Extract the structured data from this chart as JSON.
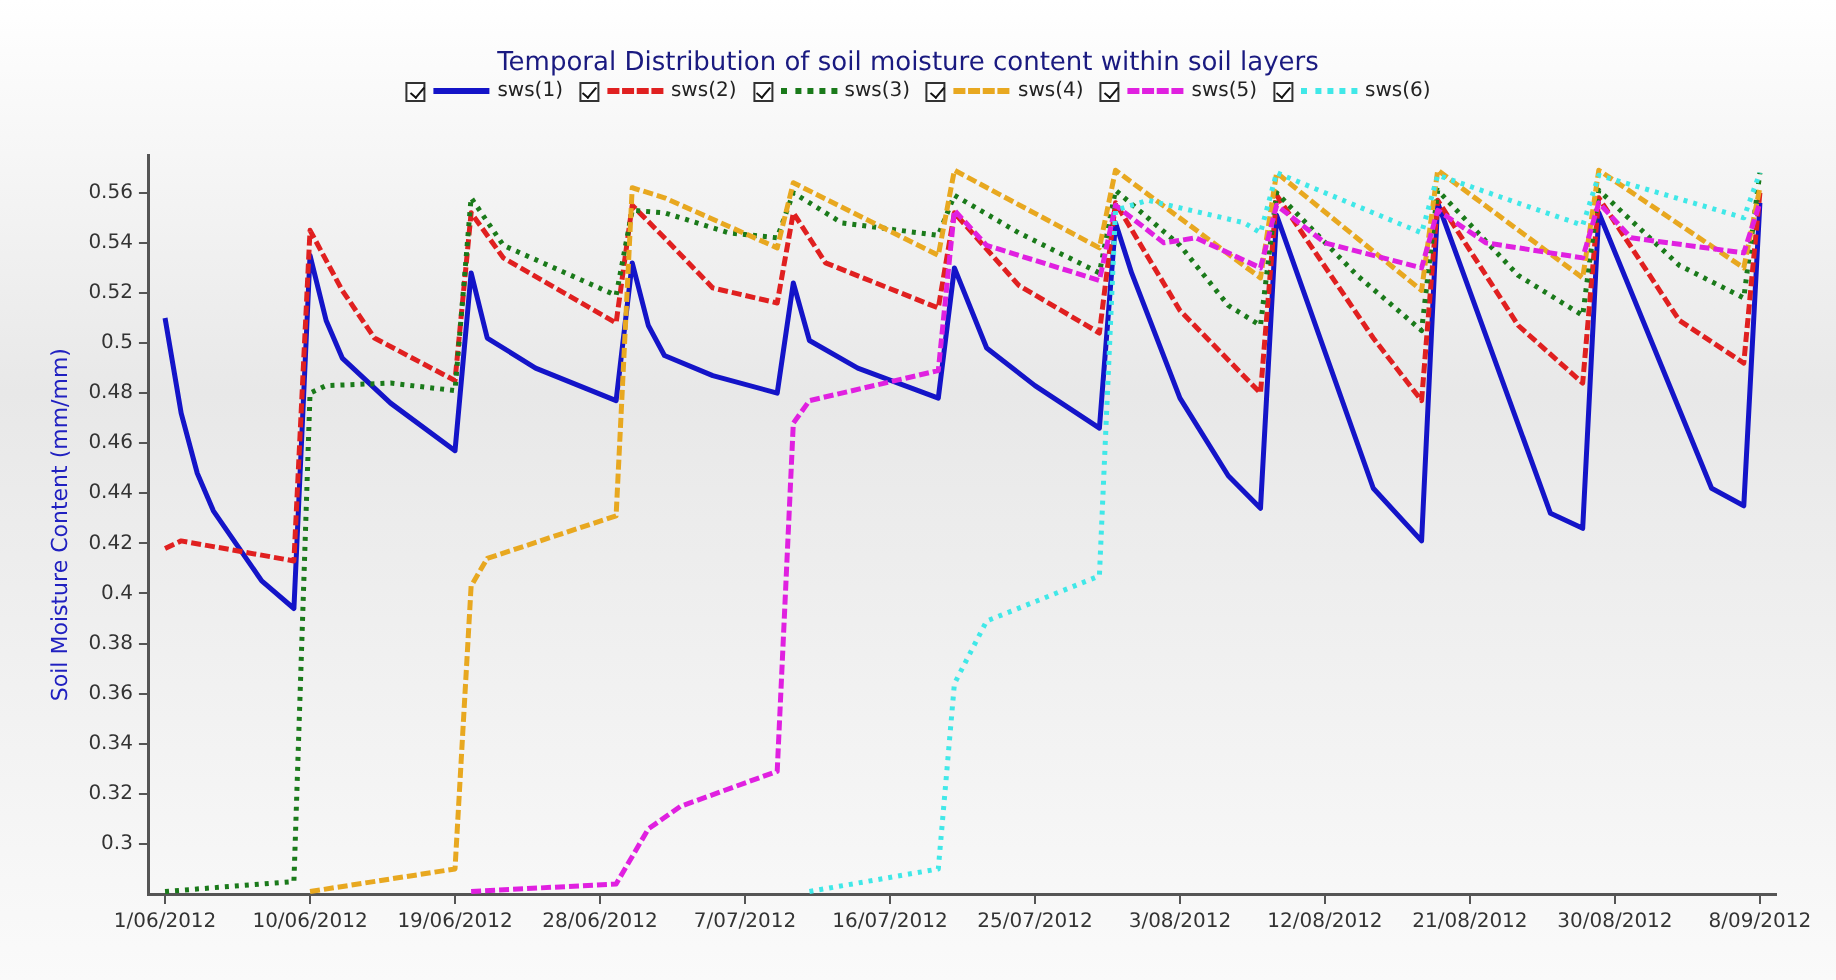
{
  "chart_data": {
    "type": "line",
    "title": "Temporal Distribution of soil moisture content within soil layers",
    "ylabel": "Soil Moisture Content (mm/mm)",
    "xlim": [
      "2012-05-31",
      "2012-09-09"
    ],
    "xticks": [
      {
        "value": "2012-06-01",
        "label": "1/06/2012"
      },
      {
        "value": "2012-06-10",
        "label": "10/06/2012"
      },
      {
        "value": "2012-06-19",
        "label": "19/06/2012"
      },
      {
        "value": "2012-06-28",
        "label": "28/06/2012"
      },
      {
        "value": "2012-07-07",
        "label": "7/07/2012"
      },
      {
        "value": "2012-07-16",
        "label": "16/07/2012"
      },
      {
        "value": "2012-07-25",
        "label": "25/07/2012"
      },
      {
        "value": "2012-08-03",
        "label": "3/08/2012"
      },
      {
        "value": "2012-08-12",
        "label": "12/08/2012"
      },
      {
        "value": "2012-08-21",
        "label": "21/08/2012"
      },
      {
        "value": "2012-08-30",
        "label": "30/08/2012"
      },
      {
        "value": "2012-09-08",
        "label": "8/09/2012"
      }
    ],
    "ylim": [
      0.28,
      0.575
    ],
    "yticks": [
      0.3,
      0.32,
      0.34,
      0.36,
      0.38,
      0.4,
      0.42,
      0.44,
      0.46,
      0.48,
      0.5,
      0.52,
      0.54,
      0.56
    ],
    "grid": false,
    "legend": "top",
    "marker": "none",
    "series": [
      {
        "name": "sws(1)",
        "color": "#1414c8",
        "line_style": "solid",
        "x": [
          "2012-06-01",
          "2012-06-02",
          "2012-06-03",
          "2012-06-04",
          "2012-06-07",
          "2012-06-09",
          "2012-06-10",
          "2012-06-11",
          "2012-06-12",
          "2012-06-15",
          "2012-06-19",
          "2012-06-20",
          "2012-06-21",
          "2012-06-24",
          "2012-06-29",
          "2012-06-30",
          "2012-07-01",
          "2012-07-02",
          "2012-07-05",
          "2012-07-09",
          "2012-07-10",
          "2012-07-11",
          "2012-07-14",
          "2012-07-19",
          "2012-07-20",
          "2012-07-22",
          "2012-07-25",
          "2012-07-29",
          "2012-07-30",
          "2012-07-31",
          "2012-08-03",
          "2012-08-06",
          "2012-08-08",
          "2012-08-09",
          "2012-08-15",
          "2012-08-18",
          "2012-08-19",
          "2012-08-26",
          "2012-08-28",
          "2012-08-29",
          "2012-09-05",
          "2012-09-07",
          "2012-09-08"
        ],
        "values": [
          0.51,
          0.472,
          0.448,
          0.433,
          0.405,
          0.394,
          0.535,
          0.509,
          0.494,
          0.476,
          0.457,
          0.528,
          0.502,
          0.49,
          0.477,
          0.532,
          0.507,
          0.495,
          0.487,
          0.48,
          0.524,
          0.501,
          0.49,
          0.478,
          0.53,
          0.498,
          0.483,
          0.466,
          0.548,
          0.528,
          0.478,
          0.447,
          0.434,
          0.551,
          0.442,
          0.421,
          0.556,
          0.432,
          0.426,
          0.552,
          0.442,
          0.435,
          0.556
        ]
      },
      {
        "name": "sws(2)",
        "color": "#e02020",
        "line_style": "dashed",
        "x": [
          "2012-06-01",
          "2012-06-02",
          "2012-06-09",
          "2012-06-10",
          "2012-06-12",
          "2012-06-14",
          "2012-06-19",
          "2012-06-20",
          "2012-06-22",
          "2012-06-29",
          "2012-06-30",
          "2012-07-02",
          "2012-07-05",
          "2012-07-09",
          "2012-07-10",
          "2012-07-12",
          "2012-07-19",
          "2012-07-20",
          "2012-07-24",
          "2012-07-29",
          "2012-07-30",
          "2012-08-03",
          "2012-08-08",
          "2012-08-09",
          "2012-08-15",
          "2012-08-18",
          "2012-08-19",
          "2012-08-24",
          "2012-08-28",
          "2012-08-29",
          "2012-09-03",
          "2012-09-07",
          "2012-09-08"
        ],
        "values": [
          0.418,
          0.421,
          0.413,
          0.545,
          0.521,
          0.502,
          0.485,
          0.552,
          0.534,
          0.508,
          0.555,
          0.542,
          0.522,
          0.516,
          0.552,
          0.532,
          0.514,
          0.552,
          0.523,
          0.504,
          0.556,
          0.513,
          0.48,
          0.559,
          0.502,
          0.477,
          0.557,
          0.507,
          0.484,
          0.558,
          0.509,
          0.492,
          0.56
        ]
      },
      {
        "name": "sws(3)",
        "color": "#1a7a1a",
        "line_style": "dotted",
        "x": [
          "2012-06-01",
          "2012-06-09",
          "2012-06-10",
          "2012-06-11",
          "2012-06-15",
          "2012-06-19",
          "2012-06-20",
          "2012-06-22",
          "2012-06-29",
          "2012-06-30",
          "2012-07-02",
          "2012-07-06",
          "2012-07-09",
          "2012-07-10",
          "2012-07-13",
          "2012-07-19",
          "2012-07-20",
          "2012-07-24",
          "2012-07-29",
          "2012-07-30",
          "2012-08-03",
          "2012-08-06",
          "2012-08-08",
          "2012-08-09",
          "2012-08-14",
          "2012-08-18",
          "2012-08-19",
          "2012-08-24",
          "2012-08-28",
          "2012-08-29",
          "2012-09-03",
          "2012-09-07",
          "2012-09-08"
        ],
        "values": [
          0.281,
          0.285,
          0.48,
          0.483,
          0.484,
          0.481,
          0.558,
          0.539,
          0.519,
          0.553,
          0.552,
          0.544,
          0.542,
          0.56,
          0.548,
          0.543,
          0.559,
          0.544,
          0.528,
          0.561,
          0.539,
          0.515,
          0.507,
          0.56,
          0.527,
          0.505,
          0.561,
          0.527,
          0.511,
          0.561,
          0.531,
          0.518,
          0.568
        ]
      },
      {
        "name": "sws(4)",
        "color": "#e8a820",
        "line_style": "dashed",
        "x": [
          "2012-06-10",
          "2012-06-19",
          "2012-06-20",
          "2012-06-21",
          "2012-06-29",
          "2012-06-30",
          "2012-07-02",
          "2012-07-09",
          "2012-07-10",
          "2012-07-19",
          "2012-07-20",
          "2012-07-29",
          "2012-07-30",
          "2012-08-08",
          "2012-08-09",
          "2012-08-18",
          "2012-08-19",
          "2012-08-28",
          "2012-08-29",
          "2012-09-07",
          "2012-09-08"
        ],
        "values": [
          0.281,
          0.29,
          0.403,
          0.414,
          0.431,
          0.562,
          0.558,
          0.538,
          0.564,
          0.535,
          0.569,
          0.538,
          0.569,
          0.526,
          0.568,
          0.521,
          0.569,
          0.526,
          0.569,
          0.53,
          0.562
        ]
      },
      {
        "name": "sws(5)",
        "color": "#e020e0",
        "line_style": "dashed",
        "x": [
          "2012-06-20",
          "2012-06-29",
          "2012-07-01",
          "2012-07-03",
          "2012-07-09",
          "2012-07-10",
          "2012-07-11",
          "2012-07-19",
          "2012-07-20",
          "2012-07-22",
          "2012-07-29",
          "2012-07-30",
          "2012-08-02",
          "2012-08-04",
          "2012-08-08",
          "2012-08-09",
          "2012-08-12",
          "2012-08-18",
          "2012-08-19",
          "2012-08-22",
          "2012-08-28",
          "2012-08-29",
          "2012-08-31",
          "2012-09-07",
          "2012-09-08"
        ],
        "values": [
          0.281,
          0.284,
          0.306,
          0.315,
          0.329,
          0.468,
          0.477,
          0.489,
          0.553,
          0.539,
          0.525,
          0.555,
          0.54,
          0.542,
          0.53,
          0.555,
          0.54,
          0.53,
          0.553,
          0.54,
          0.534,
          0.556,
          0.542,
          0.536,
          0.556
        ]
      },
      {
        "name": "sws(6)",
        "color": "#40e8e8",
        "line_style": "dotted",
        "x": [
          "2012-07-11",
          "2012-07-19",
          "2012-07-20",
          "2012-07-22",
          "2012-07-29",
          "2012-07-30",
          "2012-08-01",
          "2012-08-07",
          "2012-08-08",
          "2012-08-09",
          "2012-08-18",
          "2012-08-19",
          "2012-08-28",
          "2012-08-29",
          "2012-09-07",
          "2012-09-08"
        ],
        "values": [
          0.281,
          0.29,
          0.364,
          0.389,
          0.407,
          0.553,
          0.557,
          0.548,
          0.544,
          0.568,
          0.544,
          0.567,
          0.547,
          0.567,
          0.55,
          0.568
        ]
      }
    ]
  }
}
